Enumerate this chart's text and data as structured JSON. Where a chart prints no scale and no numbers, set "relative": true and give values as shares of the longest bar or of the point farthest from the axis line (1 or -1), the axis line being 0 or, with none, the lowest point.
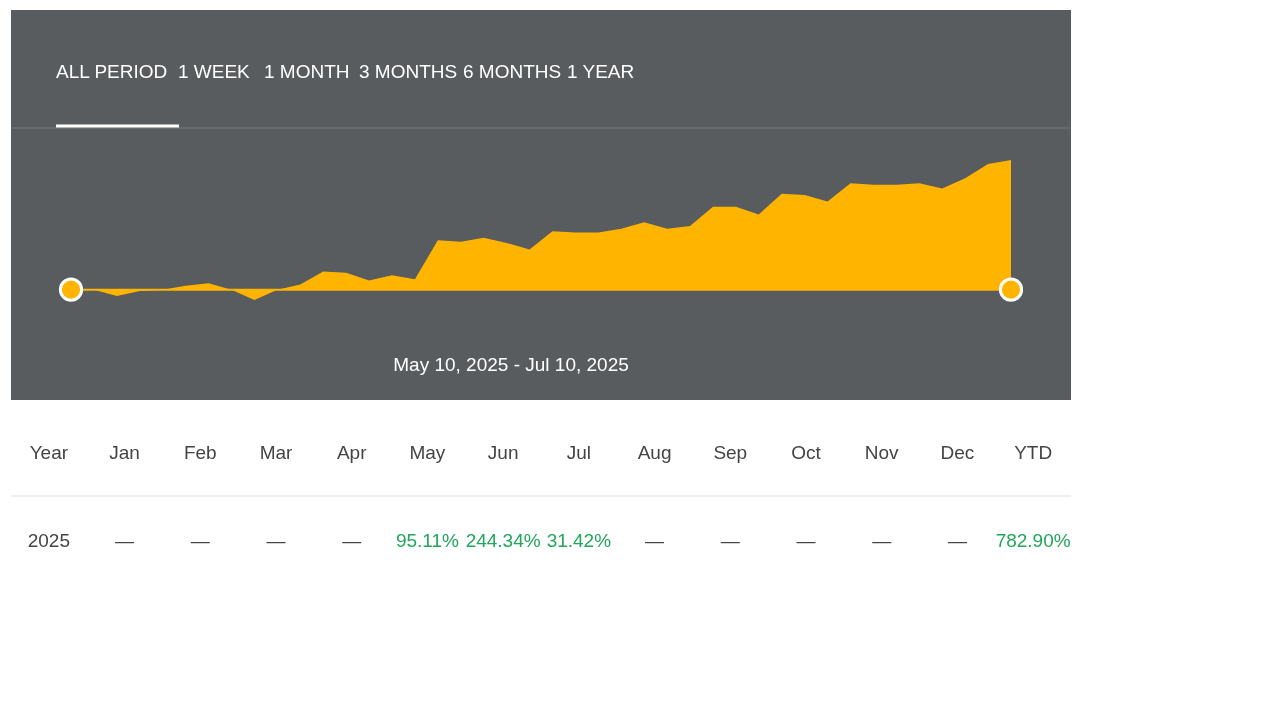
{
  "chart_data": [
    {
      "type": "area",
      "relative": true,
      "color": "#ffb400",
      "ref_lines": [
        {
          "axis": "y",
          "value": 0,
          "color": "#ffb400"
        }
      ],
      "annotations": [
        "ALL PERIOD",
        "1 WEEK",
        "1 MONTH",
        "3 MONTHS",
        "6 MONTHS",
        "1 YEAR",
        "May 10, 2025 - Jul 10, 2025"
      ],
      "categories": [
        null,
        null,
        null,
        null,
        null,
        null,
        null,
        null,
        null,
        null,
        null,
        null,
        null,
        null,
        null,
        null,
        null,
        null,
        null,
        null,
        null,
        null,
        null,
        null,
        null,
        null,
        null,
        null,
        null,
        null,
        null,
        null,
        null,
        null,
        null,
        null,
        null,
        null,
        null,
        null,
        null,
        null
      ],
      "values": [
        0,
        0,
        -0.05,
        -0.01,
        0,
        0.03,
        0.05,
        0,
        -0.08,
        0,
        0.04,
        0.14,
        0.13,
        0.07,
        0.11,
        0.08,
        0.38,
        0.37,
        0.4,
        0.36,
        0.31,
        0.45,
        0.44,
        0.44,
        0.47,
        0.52,
        0.47,
        0.49,
        0.64,
        0.64,
        0.58,
        0.74,
        0.73,
        0.68,
        0.82,
        0.81,
        0.81,
        0.82,
        0.78,
        0.86,
        0.97,
        1
      ]
    },
    {
      "type": "other",
      "categories": [
        "Year",
        "Jan",
        "Feb",
        "Mar",
        "Apr",
        "May",
        "Jun",
        "Jul",
        "Aug",
        "Sep",
        "Oct",
        "Nov",
        "Dec",
        "YTD"
      ],
      "value_labels": [
        "2025",
        "—",
        "—",
        "—",
        "—",
        "95.11%",
        "244.34%",
        "31.42%",
        "—",
        "—",
        "—",
        "—",
        "—",
        "782.90%"
      ],
      "values": [
        null,
        null,
        null,
        null,
        null,
        95.11,
        244.34,
        31.42,
        null,
        null,
        null,
        null,
        null,
        782.9
      ],
      "color": "#21a65b"
    }
  ]
}
